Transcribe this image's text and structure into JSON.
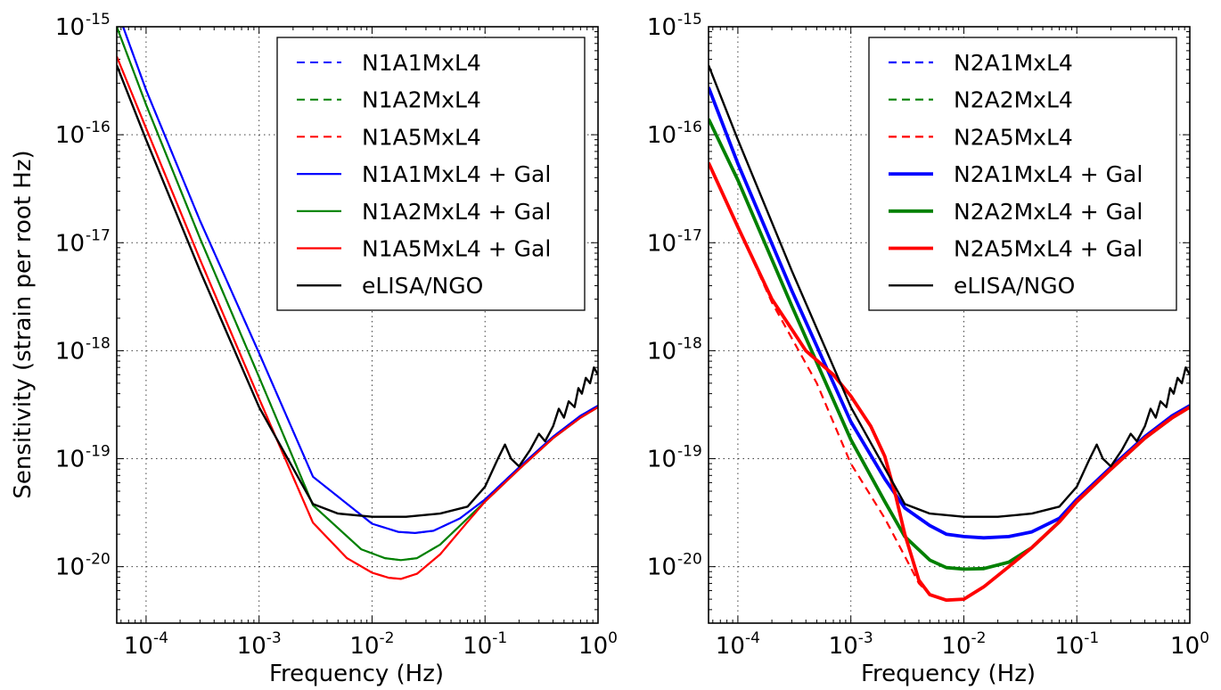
{
  "figure": {
    "ylabel": "Sensitivity (strain per root Hz)",
    "xlabel_left": "Frequency (Hz)",
    "xlabel_right": "Frequency (Hz)"
  },
  "chart_data": [
    {
      "type": "line",
      "panel": "left",
      "xscale": "log",
      "yscale": "log",
      "xlim": [
        5.5e-05,
        1.0
      ],
      "ylim": [
        3e-21,
        1e-15
      ],
      "xlabel": "Frequency (Hz)",
      "ylabel": "Sensitivity (strain per root Hz)",
      "x_ticks": [
        {
          "base": "10",
          "exp": "-4",
          "value": 0.0001
        },
        {
          "base": "10",
          "exp": "-3",
          "value": 0.001
        },
        {
          "base": "10",
          "exp": "-2",
          "value": 0.01
        },
        {
          "base": "10",
          "exp": "-1",
          "value": 0.1
        },
        {
          "base": "10",
          "exp": "0",
          "value": 1
        }
      ],
      "y_ticks": [
        {
          "base": "10",
          "exp": "-15",
          "value": 1e-15
        },
        {
          "base": "10",
          "exp": "-16",
          "value": 1e-16
        },
        {
          "base": "10",
          "exp": "-17",
          "value": 1e-17
        },
        {
          "base": "10",
          "exp": "-18",
          "value": 1e-18
        },
        {
          "base": "10",
          "exp": "-19",
          "value": 1e-19
        },
        {
          "base": "10",
          "exp": "-20",
          "value": 1e-20
        }
      ],
      "grid": true,
      "legend_position": "upper-right",
      "series": [
        {
          "name": "N1A1MxL4",
          "color": "#0000ff",
          "style": "dashed",
          "width": 2,
          "x": [
            5.5e-05,
            0.0001,
            0.0003,
            0.001,
            0.003,
            0.01,
            0.017,
            0.024,
            0.035,
            0.06,
            0.1,
            0.2,
            0.4,
            0.7,
            1.0
          ],
          "y": [
            1.45e-15,
            2.6e-16,
            1.6e-17,
            9.5e-19,
            6.8e-20,
            2.5e-20,
            2.1e-20,
            2.05e-20,
            2.15e-20,
            2.8e-20,
            4.2e-20,
            8.3e-20,
            1.6e-19,
            2.5e-19,
            3.1e-19
          ]
        },
        {
          "name": "N1A2MxL4",
          "color": "#008000",
          "style": "dashed",
          "width": 2,
          "x": [
            5.5e-05,
            0.0001,
            0.0003,
            0.001,
            0.003,
            0.008,
            0.013,
            0.018,
            0.025,
            0.04,
            0.07,
            0.1,
            0.2,
            0.4,
            0.7,
            1.0
          ],
          "y": [
            1e-15,
            1.9e-16,
            1.1e-17,
            5.7e-19,
            3.7e-20,
            1.45e-20,
            1.2e-20,
            1.15e-20,
            1.2e-20,
            1.6e-20,
            2.8e-20,
            4e-20,
            8e-20,
            1.55e-19,
            2.4e-19,
            3e-19
          ]
        },
        {
          "name": "N1A5MxL4",
          "color": "#ff0000",
          "style": "dashed",
          "width": 2,
          "x": [
            5.5e-05,
            0.0001,
            0.0003,
            0.001,
            0.003,
            0.006,
            0.01,
            0.014,
            0.018,
            0.025,
            0.04,
            0.07,
            0.1,
            0.2,
            0.4,
            0.7,
            1.0
          ],
          "y": [
            5.3e-16,
            1.15e-16,
            7e-18,
            3.6e-19,
            2.55e-20,
            1.2e-20,
            8.8e-21,
            7.9e-21,
            7.7e-21,
            8.6e-21,
            1.3e-20,
            2.6e-20,
            4e-20,
            8e-20,
            1.55e-19,
            2.4e-19,
            3e-19
          ]
        },
        {
          "name": "N1A1MxL4 + Gal",
          "color": "#0000ff",
          "style": "solid",
          "width": 2.2,
          "x": [
            5.5e-05,
            0.0001,
            0.0003,
            0.001,
            0.003,
            0.01,
            0.017,
            0.024,
            0.035,
            0.06,
            0.1,
            0.2,
            0.4,
            0.7,
            1.0
          ],
          "y": [
            1.45e-15,
            2.6e-16,
            1.6e-17,
            9.5e-19,
            6.8e-20,
            2.5e-20,
            2.1e-20,
            2.05e-20,
            2.15e-20,
            2.8e-20,
            4.2e-20,
            8.3e-20,
            1.6e-19,
            2.5e-19,
            3.1e-19
          ]
        },
        {
          "name": "N1A2MxL4 + Gal",
          "color": "#008000",
          "style": "solid",
          "width": 2.2,
          "x": [
            5.5e-05,
            0.0001,
            0.0003,
            0.001,
            0.003,
            0.008,
            0.013,
            0.018,
            0.025,
            0.04,
            0.07,
            0.1,
            0.2,
            0.4,
            0.7,
            1.0
          ],
          "y": [
            1e-15,
            1.9e-16,
            1.1e-17,
            5.7e-19,
            3.7e-20,
            1.45e-20,
            1.2e-20,
            1.15e-20,
            1.2e-20,
            1.6e-20,
            2.8e-20,
            4e-20,
            8e-20,
            1.55e-19,
            2.4e-19,
            3e-19
          ]
        },
        {
          "name": "N1A5MxL4 + Gal",
          "color": "#ff0000",
          "style": "solid",
          "width": 2.2,
          "x": [
            5.5e-05,
            0.0001,
            0.0003,
            0.001,
            0.003,
            0.006,
            0.01,
            0.014,
            0.018,
            0.025,
            0.04,
            0.07,
            0.1,
            0.2,
            0.4,
            0.7,
            1.0
          ],
          "y": [
            5.3e-16,
            1.15e-16,
            7e-18,
            3.6e-19,
            2.55e-20,
            1.2e-20,
            8.8e-21,
            7.9e-21,
            7.7e-21,
            8.6e-21,
            1.3e-20,
            2.6e-20,
            4e-20,
            8e-20,
            1.55e-19,
            2.4e-19,
            3e-19
          ]
        },
        {
          "name": "eLISA/NGO",
          "color": "#000000",
          "style": "solid",
          "width": 2.4,
          "x": [
            5.5e-05,
            0.0001,
            0.0003,
            0.001,
            0.003,
            0.005,
            0.01,
            0.02,
            0.04,
            0.07,
            0.1,
            0.13,
            0.15,
            0.17,
            0.2,
            0.25,
            0.3,
            0.34,
            0.4,
            0.45,
            0.5,
            0.55,
            0.62,
            0.67,
            0.72,
            0.78,
            0.85,
            0.92,
            1.0
          ],
          "y": [
            4.4e-16,
            9e-17,
            5.5e-18,
            3e-19,
            3.8e-20,
            3.1e-20,
            2.9e-20,
            2.9e-20,
            3.1e-20,
            3.6e-20,
            5.5e-20,
            1e-19,
            1.35e-19,
            1e-19,
            8.5e-20,
            1.2e-19,
            1.7e-19,
            1.45e-19,
            2e-19,
            2.9e-19,
            2.4e-19,
            3.4e-19,
            3e-19,
            4.5e-19,
            4e-19,
            5.6e-19,
            5e-19,
            7e-19,
            6e-19
          ]
        }
      ]
    },
    {
      "type": "line",
      "panel": "right",
      "xscale": "log",
      "yscale": "log",
      "xlim": [
        5.5e-05,
        1.0
      ],
      "ylim": [
        3e-21,
        1e-15
      ],
      "xlabel": "Frequency (Hz)",
      "x_ticks": [
        {
          "base": "10",
          "exp": "-4",
          "value": 0.0001
        },
        {
          "base": "10",
          "exp": "-3",
          "value": 0.001
        },
        {
          "base": "10",
          "exp": "-2",
          "value": 0.01
        },
        {
          "base": "10",
          "exp": "-1",
          "value": 0.1
        },
        {
          "base": "10",
          "exp": "0",
          "value": 1
        }
      ],
      "y_ticks": [
        {
          "base": "10",
          "exp": "-15",
          "value": 1e-15
        },
        {
          "base": "10",
          "exp": "-16",
          "value": 1e-16
        },
        {
          "base": "10",
          "exp": "-17",
          "value": 1e-17
        },
        {
          "base": "10",
          "exp": "-18",
          "value": 1e-18
        },
        {
          "base": "10",
          "exp": "-19",
          "value": 1e-19
        },
        {
          "base": "10",
          "exp": "-20",
          "value": 1e-20
        }
      ],
      "grid": true,
      "legend_position": "upper-right",
      "series": [
        {
          "name": "N2A1MxL4",
          "color": "#0000ff",
          "style": "dashed",
          "width": 2.2,
          "x": [
            5.5e-05,
            0.0001,
            0.0003,
            0.001,
            0.002,
            0.003,
            0.005,
            0.007,
            0.01,
            0.015,
            0.025,
            0.04,
            0.07,
            0.1,
            0.2,
            0.4,
            0.7,
            1.0
          ],
          "y": [
            2.75e-16,
            5.4e-17,
            3.6e-18,
            2.2e-19,
            6.5e-20,
            3.5e-20,
            2.4e-20,
            2e-20,
            1.9e-20,
            1.85e-20,
            1.9e-20,
            2.1e-20,
            2.8e-20,
            4.2e-20,
            8.3e-20,
            1.6e-19,
            2.5e-19,
            3.1e-19
          ]
        },
        {
          "name": "N2A2MxL4",
          "color": "#008000",
          "style": "dashed",
          "width": 2.2,
          "x": [
            5.5e-05,
            0.0001,
            0.0003,
            0.001,
            0.002,
            0.003,
            0.005,
            0.007,
            0.01,
            0.015,
            0.025,
            0.04,
            0.07,
            0.1,
            0.2,
            0.4,
            0.7,
            1.0
          ],
          "y": [
            1.4e-16,
            3.8e-17,
            2.6e-18,
            1.5e-19,
            4e-20,
            1.9e-20,
            1.15e-20,
            9.8e-21,
            9.5e-21,
            9.6e-21,
            1.1e-20,
            1.5e-20,
            2.6e-20,
            4e-20,
            8e-20,
            1.55e-19,
            2.4e-19,
            3e-19
          ]
        },
        {
          "name": "N2A5MxL4",
          "color": "#ff0000",
          "style": "dashed",
          "width": 2.2,
          "x": [
            5.5e-05,
            0.0001,
            0.0002,
            0.0005,
            0.001,
            0.002,
            0.003,
            0.004,
            0.005,
            0.007,
            0.01,
            0.015,
            0.025,
            0.04,
            0.07,
            0.1,
            0.2,
            0.4,
            0.7,
            1.0
          ],
          "y": [
            5.5e-17,
            1.4e-17,
            2.8e-18,
            5e-19,
            9e-20,
            2.8e-20,
            1.25e-20,
            7e-21,
            5.5e-21,
            4.9e-21,
            5e-21,
            6.5e-21,
            1e-20,
            1.5e-20,
            2.6e-20,
            4e-20,
            8e-20,
            1.55e-19,
            2.4e-19,
            3e-19
          ]
        },
        {
          "name": "N2A1MxL4 + Gal",
          "color": "#0000ff",
          "style": "solid",
          "width": 3.8,
          "x": [
            5.5e-05,
            0.0001,
            0.0003,
            0.001,
            0.002,
            0.003,
            0.005,
            0.007,
            0.01,
            0.015,
            0.025,
            0.04,
            0.07,
            0.1,
            0.2,
            0.4,
            0.7,
            1.0
          ],
          "y": [
            2.75e-16,
            5.4e-17,
            3.6e-18,
            2.2e-19,
            6.5e-20,
            3.5e-20,
            2.4e-20,
            2e-20,
            1.9e-20,
            1.85e-20,
            1.9e-20,
            2.1e-20,
            2.8e-20,
            4.2e-20,
            8.3e-20,
            1.6e-19,
            2.5e-19,
            3.1e-19
          ]
        },
        {
          "name": "N2A2MxL4 + Gal",
          "color": "#008000",
          "style": "solid",
          "width": 3.8,
          "x": [
            5.5e-05,
            0.0001,
            0.0003,
            0.001,
            0.002,
            0.003,
            0.005,
            0.007,
            0.01,
            0.015,
            0.025,
            0.04,
            0.07,
            0.1,
            0.2,
            0.4,
            0.7,
            1.0
          ],
          "y": [
            1.4e-16,
            3.8e-17,
            2.6e-18,
            1.5e-19,
            4e-20,
            1.9e-20,
            1.15e-20,
            9.8e-21,
            9.5e-21,
            9.6e-21,
            1.1e-20,
            1.5e-20,
            2.6e-20,
            4e-20,
            8e-20,
            1.55e-19,
            2.4e-19,
            3e-19
          ]
        },
        {
          "name": "N2A5MxL4 + Gal",
          "color": "#ff0000",
          "style": "solid",
          "width": 3.8,
          "x": [
            5.5e-05,
            0.0001,
            0.0002,
            0.0004,
            0.0007,
            0.001,
            0.0015,
            0.002,
            0.0025,
            0.003,
            0.004,
            0.005,
            0.007,
            0.01,
            0.015,
            0.025,
            0.04,
            0.07,
            0.1,
            0.2,
            0.4,
            0.7,
            1.0
          ],
          "y": [
            5.5e-17,
            1.4e-17,
            3e-18,
            1e-18,
            6e-19,
            3.8e-19,
            2e-19,
            1.05e-19,
            4.5e-20,
            2e-20,
            7.5e-21,
            5.5e-21,
            4.9e-21,
            5e-21,
            6.5e-21,
            1e-20,
            1.5e-20,
            2.6e-20,
            4e-20,
            8e-20,
            1.55e-19,
            2.4e-19,
            3e-19
          ]
        },
        {
          "name": "eLISA/NGO",
          "color": "#000000",
          "style": "solid",
          "width": 2.4,
          "x": [
            5.5e-05,
            0.0001,
            0.0003,
            0.001,
            0.003,
            0.005,
            0.01,
            0.02,
            0.04,
            0.07,
            0.1,
            0.13,
            0.15,
            0.17,
            0.2,
            0.25,
            0.3,
            0.34,
            0.4,
            0.45,
            0.5,
            0.55,
            0.62,
            0.67,
            0.72,
            0.78,
            0.85,
            0.92,
            1.0
          ],
          "y": [
            4.4e-16,
            9e-17,
            5.5e-18,
            3e-19,
            3.8e-20,
            3.1e-20,
            2.9e-20,
            2.9e-20,
            3.1e-20,
            3.6e-20,
            5.5e-20,
            1e-19,
            1.35e-19,
            1e-19,
            8.5e-20,
            1.2e-19,
            1.7e-19,
            1.45e-19,
            2e-19,
            2.9e-19,
            2.4e-19,
            3.4e-19,
            3e-19,
            4.5e-19,
            4e-19,
            5.6e-19,
            5e-19,
            7e-19,
            6e-19
          ]
        }
      ]
    }
  ]
}
